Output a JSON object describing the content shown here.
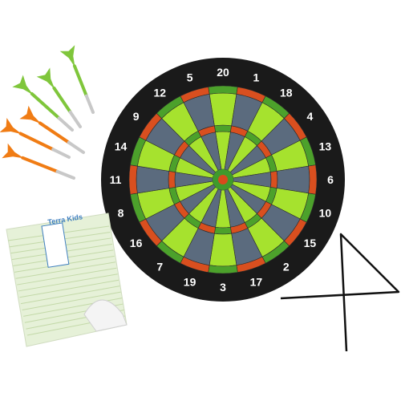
{
  "dartboard": {
    "numbers": [
      "20",
      "1",
      "18",
      "4",
      "13",
      "6",
      "10",
      "15",
      "2",
      "17",
      "3",
      "19",
      "7",
      "16",
      "8",
      "11",
      "14",
      "9",
      "12",
      "5"
    ],
    "colors": {
      "rim": "#1a1a1a",
      "segment_light": "#a6e22e",
      "segment_dark": "#5b6b7e",
      "ring_red": "#d94f1f",
      "ring_green": "#4ca12b",
      "bull_outer": "#3f9a2c",
      "bull_inner": "#d84a1c",
      "numbers": "#ffffff"
    }
  },
  "darts": {
    "green_count": 3,
    "orange_count": 3,
    "colors": {
      "green": "#7fc63b",
      "orange": "#f07c14",
      "barrel": "#c8c8c8"
    }
  },
  "score_pad": {
    "brand": "Terra Kids",
    "colors": {
      "paper": "#e6f1d8",
      "lines": "#c3d9a8",
      "accent": "#3f7fbf"
    }
  },
  "hanger": {
    "color": "#111111"
  }
}
